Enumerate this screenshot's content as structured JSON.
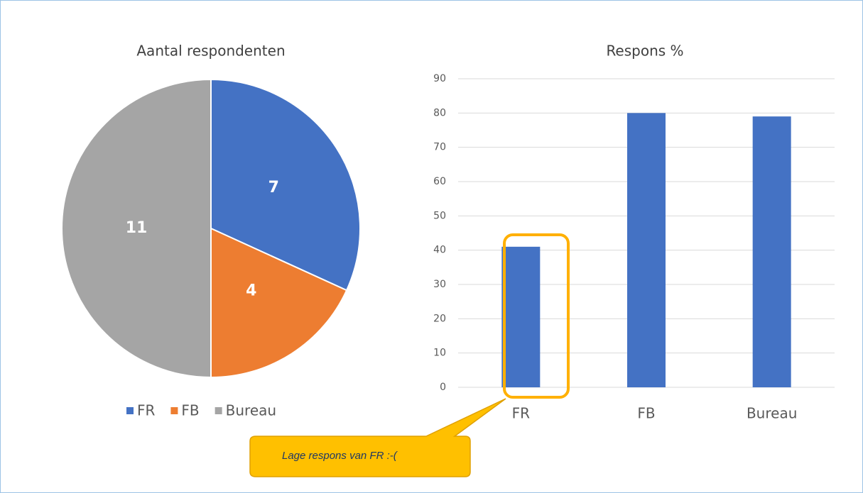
{
  "chart_data": [
    {
      "type": "pie",
      "title": "Aantal respondenten",
      "categories": [
        "FR",
        "FB",
        "Bureau"
      ],
      "values": [
        7,
        4,
        11
      ],
      "colors": [
        "#4472c4",
        "#ed7d31",
        "#a5a5a5"
      ],
      "legend": "bottom"
    },
    {
      "type": "bar",
      "title": "Respons %",
      "categories": [
        "FR",
        "FB",
        "Bureau"
      ],
      "values": [
        41,
        80,
        79
      ],
      "color": "#4472c4",
      "ylim": [
        0,
        90
      ],
      "yticks": [
        0,
        10,
        20,
        30,
        40,
        50,
        60,
        70,
        80,
        90
      ],
      "grid": true,
      "annotation": "Lage respons van FR :-("
    }
  ]
}
